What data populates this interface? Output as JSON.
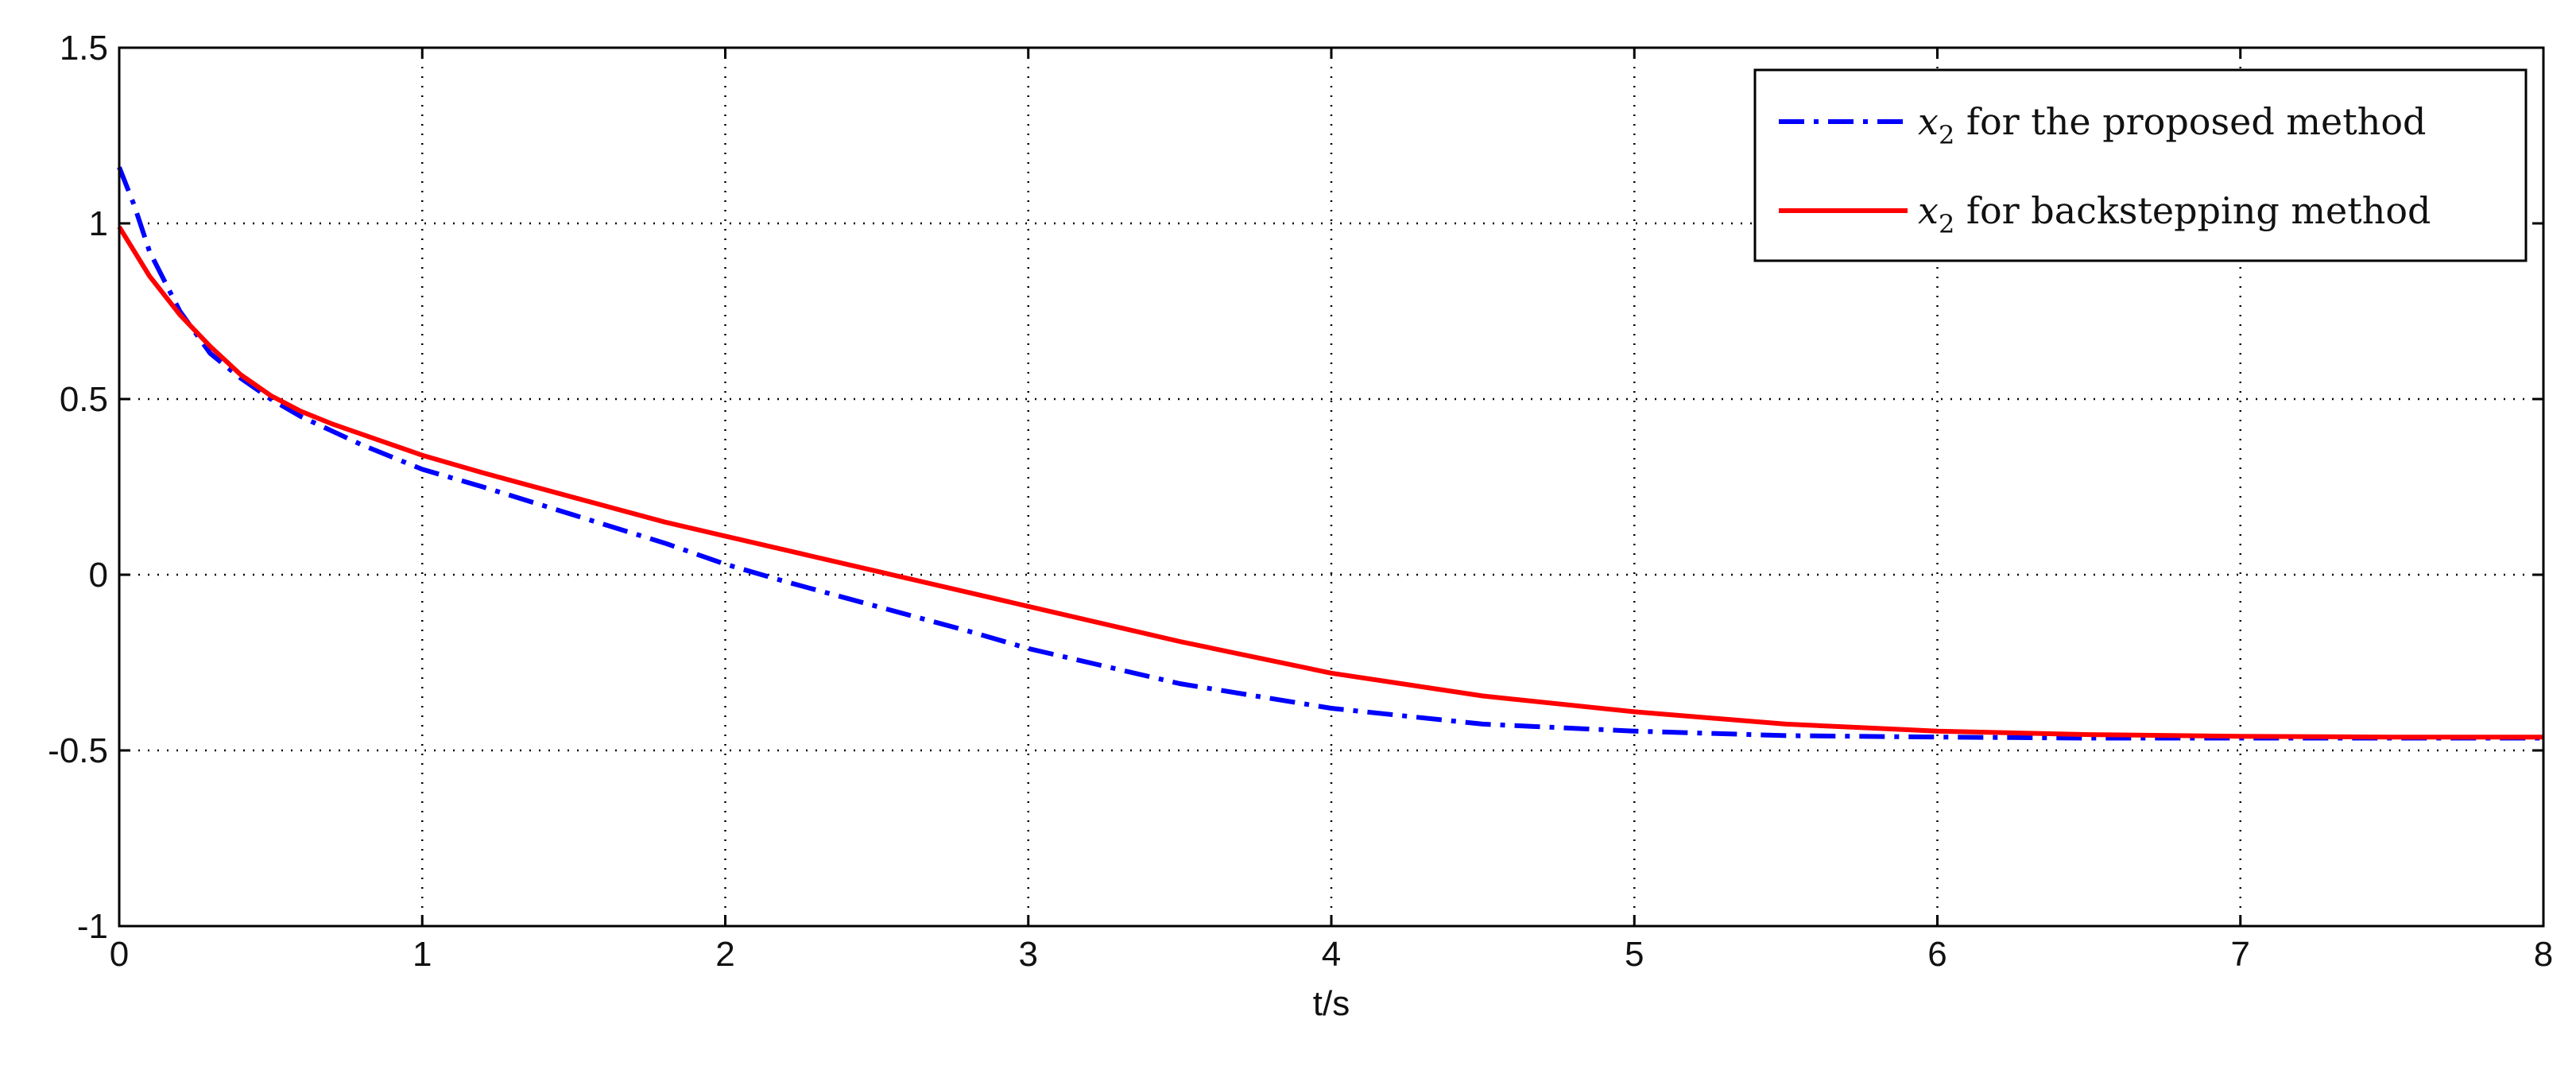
{
  "chart_data": {
    "type": "line",
    "title": "",
    "xlabel": "t/s",
    "ylabel": "",
    "xlim": [
      0,
      8
    ],
    "ylim": [
      -1,
      1.5
    ],
    "xticks": [
      0,
      1,
      2,
      3,
      4,
      5,
      6,
      7,
      8
    ],
    "yticks": [
      -1,
      -0.5,
      0,
      0.5,
      1,
      1.5
    ],
    "xtick_labels": [
      "0",
      "1",
      "2",
      "3",
      "4",
      "5",
      "6",
      "7",
      "8"
    ],
    "ytick_labels": [
      "-1",
      "-0.5",
      "0",
      "0.5",
      "1",
      "1.5"
    ],
    "grid": true,
    "legend_position": "top-right",
    "series": [
      {
        "name_prefix": "x",
        "name_subscript": "2",
        "name_suffix": " for the proposed method",
        "color": "#0000ff",
        "line_style": "dash-dot",
        "x": [
          0,
          0.05,
          0.1,
          0.2,
          0.3,
          0.4,
          0.5,
          0.6,
          0.7,
          0.8,
          1.0,
          1.2,
          1.5,
          1.8,
          2.0,
          2.2,
          2.5,
          2.8,
          3.0,
          3.3,
          3.5,
          4.0,
          4.5,
          5.0,
          5.5,
          6.0,
          6.5,
          7.0,
          7.5,
          8.0
        ],
        "y": [
          1.16,
          1.05,
          0.92,
          0.75,
          0.63,
          0.56,
          0.5,
          0.45,
          0.41,
          0.37,
          0.3,
          0.25,
          0.17,
          0.09,
          0.03,
          -0.02,
          -0.09,
          -0.16,
          -0.21,
          -0.27,
          -0.31,
          -0.38,
          -0.425,
          -0.445,
          -0.458,
          -0.462,
          -0.465,
          -0.465,
          -0.465,
          -0.465
        ]
      },
      {
        "name_prefix": "x",
        "name_subscript": "2",
        "name_suffix": " for backstepping method",
        "color": "#ff0000",
        "line_style": "solid",
        "x": [
          0,
          0.05,
          0.1,
          0.2,
          0.3,
          0.4,
          0.5,
          0.6,
          0.7,
          0.8,
          1.0,
          1.2,
          1.5,
          1.8,
          2.0,
          2.2,
          2.5,
          2.8,
          3.0,
          3.3,
          3.5,
          4.0,
          4.5,
          5.0,
          5.5,
          6.0,
          6.5,
          7.0,
          7.5,
          8.0
        ],
        "y": [
          0.99,
          0.92,
          0.85,
          0.74,
          0.65,
          0.57,
          0.51,
          0.465,
          0.43,
          0.4,
          0.34,
          0.29,
          0.22,
          0.15,
          0.11,
          0.07,
          0.01,
          -0.05,
          -0.09,
          -0.15,
          -0.19,
          -0.28,
          -0.345,
          -0.39,
          -0.425,
          -0.445,
          -0.455,
          -0.46,
          -0.462,
          -0.462
        ]
      }
    ]
  }
}
